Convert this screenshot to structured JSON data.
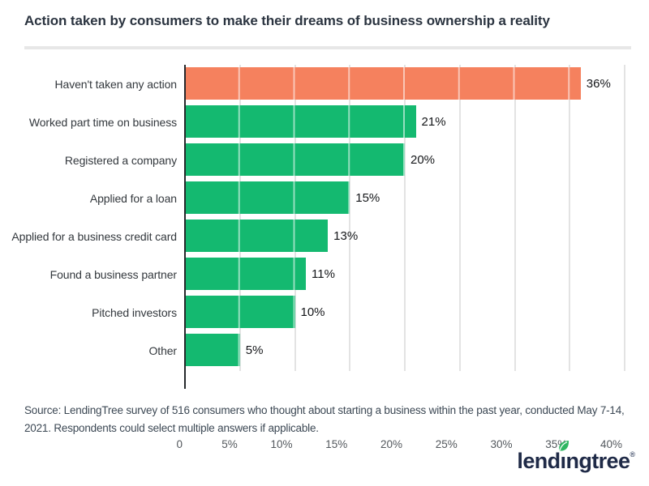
{
  "header": {
    "title": "Action taken by consumers to make their dreams of business ownership a reality"
  },
  "chart_data": {
    "type": "bar",
    "orientation": "horizontal",
    "title": "Action taken by consumers to make their dreams of business ownership a reality",
    "categories": [
      "Haven't taken any action",
      "Worked part time on business",
      "Registered a company",
      "Applied for a loan",
      "Applied for a business credit card",
      "Found a business partner",
      "Pitched investors",
      "Other"
    ],
    "values": [
      36,
      21,
      20,
      15,
      13,
      11,
      10,
      5
    ],
    "value_labels": [
      "36%",
      "21%",
      "20%",
      "15%",
      "13%",
      "11%",
      "10%",
      "5%"
    ],
    "bar_colors": [
      "#F5815E",
      "#14B970",
      "#14B970",
      "#14B970",
      "#14B970",
      "#14B970",
      "#14B970",
      "#14B970"
    ],
    "highlight_index": 0,
    "highlight_color": "#F5815E",
    "base_color": "#14B970",
    "xlabel": "",
    "ylabel": "",
    "xlim": [
      0,
      40
    ],
    "tick_values": [
      0,
      5,
      10,
      15,
      20,
      25,
      30,
      35,
      40
    ],
    "tick_labels": [
      "0",
      "5%",
      "10%",
      "15%",
      "20%",
      "25%",
      "30%",
      "35%",
      "40%"
    ],
    "grid": true,
    "legend": false
  },
  "footer": {
    "source": "Source: LendingTree survey of 516 consumers who thought about starting a business within the past year, conducted May 7-14, 2021. Respondents could select multiple answers if applicable."
  },
  "logo": {
    "name": "lendingtree",
    "part1": "lend",
    "dotless_i": "ı",
    "part2": "ngtree",
    "registered": "®",
    "navy": "#1F2A47",
    "leaf_green": "#2FB661"
  }
}
